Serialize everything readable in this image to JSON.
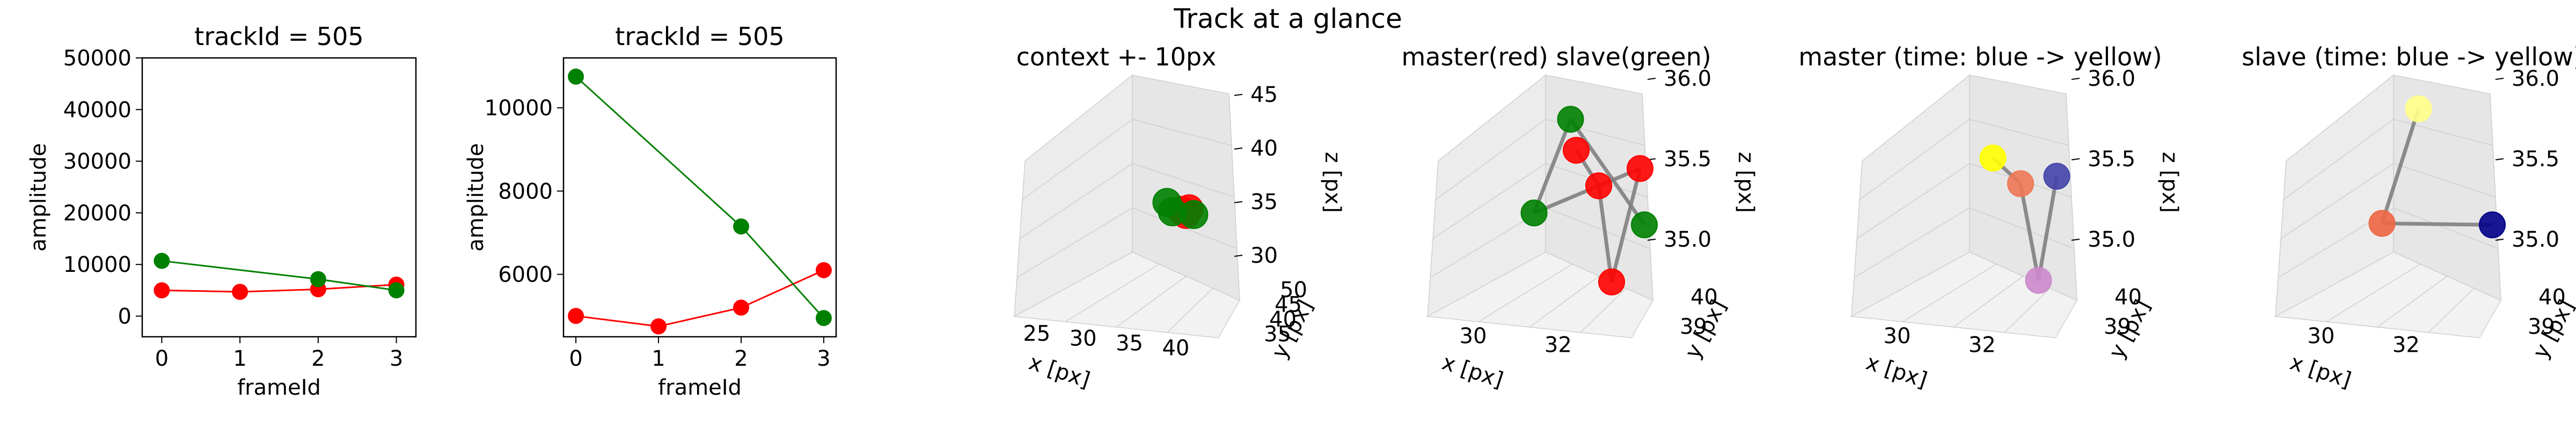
{
  "suptitle": "Track at a glance",
  "colors": {
    "master": "#ff0000",
    "slave": "#008000",
    "link": "#808080",
    "axis": "#000000",
    "pane": "#f2f2f2",
    "grid": "#cfcfcf"
  },
  "chart_data": [
    {
      "id": "amp-full",
      "type": "line",
      "title": "trackId = 505",
      "xlabel": "frameId",
      "ylabel": "amplitude",
      "x": [
        0,
        1,
        2,
        3
      ],
      "xticks": [
        "0",
        "1",
        "2",
        "3"
      ],
      "yticks": [
        "0",
        "10000",
        "20000",
        "30000",
        "40000",
        "50000"
      ],
      "xlim": [
        -0.25,
        3.25
      ],
      "ylim": [
        -4000,
        50000
      ],
      "series": [
        {
          "name": "",
          "color": "#ff0000",
          "x": [
            0,
            1,
            2,
            3
          ],
          "values": [
            5000,
            4700,
            5200,
            6100
          ]
        },
        {
          "name": "",
          "color": "#008000",
          "x": [
            0,
            2,
            3
          ],
          "values": [
            10700,
            7150,
            5000
          ]
        }
      ]
    },
    {
      "id": "amp-zoom",
      "type": "line",
      "title": "trackId = 505",
      "xlabel": "frameId",
      "ylabel": "amplitude",
      "x": [
        0,
        1,
        2,
        3
      ],
      "xticks": [
        "0",
        "1",
        "2",
        "3"
      ],
      "yticks": [
        "6000",
        "8000",
        "10000"
      ],
      "xlim": [
        -0.15,
        3.15
      ],
      "ylim": [
        4500,
        11200
      ],
      "series": [
        {
          "name": "",
          "color": "#ff0000",
          "x": [
            0,
            1,
            2,
            3
          ],
          "values": [
            5000,
            4750,
            5200,
            6100
          ]
        },
        {
          "name": "",
          "color": "#008000",
          "x": [
            0,
            2,
            3
          ],
          "values": [
            10750,
            7150,
            4950
          ]
        }
      ]
    },
    {
      "id": "context",
      "type": "scatter",
      "title": "context +- 10px",
      "xlabel": "x [px]",
      "ylabel": "y [px]",
      "zlabel": "z [px]",
      "xticks": [
        "25",
        "30",
        "35",
        "40"
      ],
      "yticks": [
        "35",
        "40",
        "45",
        "50"
      ],
      "zticks": [
        "30",
        "35",
        "40",
        "45"
      ],
      "points": [
        {
          "color": "#ff0000",
          "x": 31.5,
          "y": 39.2,
          "z": 35.6
        },
        {
          "color": "#ff0000",
          "x": 32.3,
          "y": 39.4,
          "z": 35.9
        },
        {
          "color": "#ff0000",
          "x": 31.9,
          "y": 39.1,
          "z": 35.2
        },
        {
          "color": "#008000",
          "x": 30.6,
          "y": 39.0,
          "z": 35.3
        },
        {
          "color": "#008000",
          "x": 32.8,
          "y": 39.6,
          "z": 35.4
        },
        {
          "color": "#008000",
          "x": 30.2,
          "y": 39.3,
          "z": 36.3
        }
      ]
    },
    {
      "id": "master-slave",
      "type": "scatter",
      "title": "master(red) slave(green)",
      "xlabel": "x [px]",
      "ylabel": "y [px]",
      "zlabel": "z [px]",
      "xticks": [
        "30",
        "32"
      ],
      "yticks": [
        "39",
        "40"
      ],
      "zticks": [
        "35.0",
        "35.5",
        "36.0"
      ],
      "points": [
        {
          "color": "#ff0000",
          "x": 30.8,
          "y": 39.5,
          "z": 36.2
        },
        {
          "color": "#ff0000",
          "x": 31.3,
          "y": 39.6,
          "z": 35.9
        },
        {
          "color": "#ff0000",
          "x": 31.9,
          "y": 40.2,
          "z": 35.1
        },
        {
          "color": "#ff0000",
          "x": 32.4,
          "y": 40.1,
          "z": 36.2
        },
        {
          "color": "#008000",
          "x": 29.8,
          "y": 39.2,
          "z": 35.5
        },
        {
          "color": "#008000",
          "x": 30.4,
          "y": 39.0,
          "z": 36.4
        },
        {
          "color": "#008000",
          "x": 32.6,
          "y": 40.3,
          "z": 35.7
        }
      ]
    },
    {
      "id": "master-time",
      "type": "scatter",
      "title": "master (time: blue -> yellow)",
      "xlabel": "x [px]",
      "ylabel": "y [px]",
      "zlabel": "z [px]",
      "xticks": [
        "30",
        "32"
      ],
      "yticks": [
        "39",
        "40"
      ],
      "zticks": [
        "35.0",
        "35.5",
        "36.0"
      ],
      "points": [
        {
          "color": "#ffff00",
          "x": 30.6,
          "y": 39.4,
          "z": 36.1
        },
        {
          "color": "#ee7755",
          "x": 31.2,
          "y": 39.5,
          "z": 35.9
        },
        {
          "color": "#cc88cc",
          "x": 31.9,
          "y": 40.1,
          "z": 35.1
        },
        {
          "color": "#4444aa",
          "x": 32.2,
          "y": 40.0,
          "z": 36.1
        }
      ]
    },
    {
      "id": "slave-time",
      "type": "scatter",
      "title": "slave (time: blue -> yellow)",
      "xlabel": "x [px]",
      "ylabel": "y [px]",
      "zlabel": "z [px]",
      "xticks": [
        "30",
        "32"
      ],
      "yticks": [
        "39",
        "40"
      ],
      "zticks": [
        "35.0",
        "35.5",
        "36.0"
      ],
      "points": [
        {
          "color": "#ffff88",
          "x": 30.4,
          "y": 39.0,
          "z": 36.5
        },
        {
          "color": "#ee6644",
          "x": 29.8,
          "y": 39.2,
          "z": 35.4
        },
        {
          "color": "#000088",
          "x": 32.6,
          "y": 40.3,
          "z": 35.7
        }
      ]
    }
  ]
}
